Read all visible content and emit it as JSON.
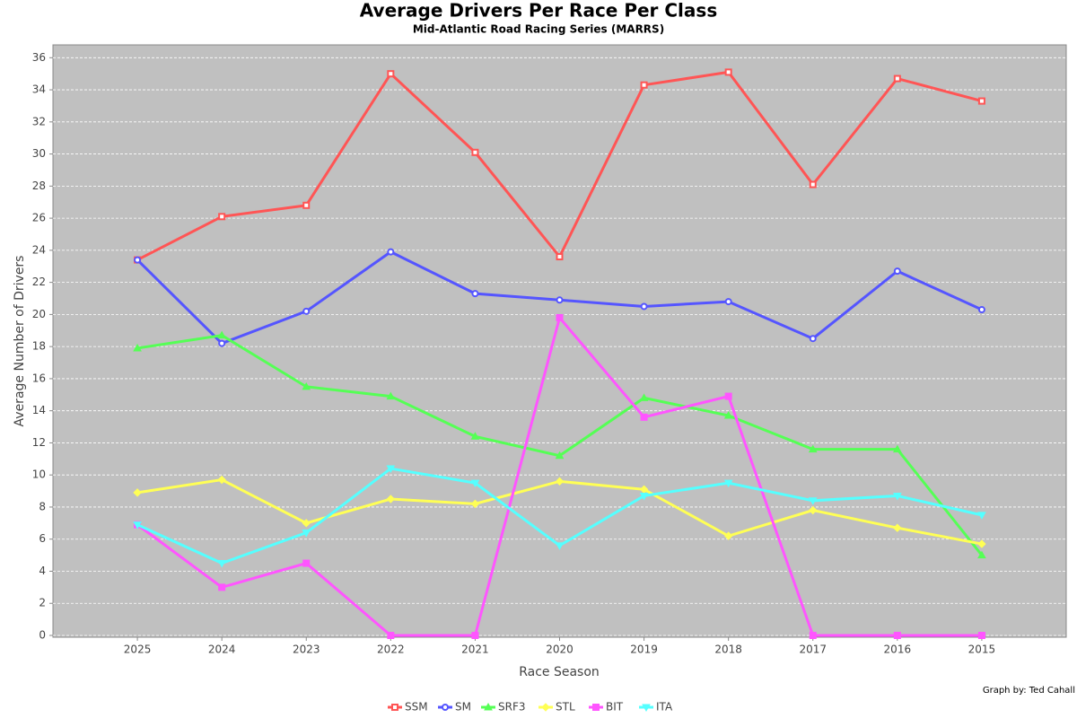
{
  "chart_data": {
    "type": "line",
    "title": "Average Drivers Per Race Per Class",
    "subtitle": "Mid-Atlantic Road Racing Series (MARRS)",
    "x_label": "Race Season",
    "y_label": "Average Number of Drivers",
    "annotation": "Graph by: Ted Cahall",
    "categories": [
      "2025",
      "2024",
      "2023",
      "2022",
      "2021",
      "2020",
      "2019",
      "2018",
      "2017",
      "2016",
      "2015"
    ],
    "ylim": [
      0,
      36.8
    ],
    "yticks": [
      0,
      2,
      4,
      6,
      8,
      10,
      12,
      14,
      16,
      18,
      20,
      22,
      24,
      26,
      28,
      30,
      32,
      34,
      36
    ],
    "grid": true,
    "legend": "bottom",
    "series": [
      {
        "name": "SSM",
        "color": "#ff5555",
        "marker": "square",
        "values": [
          23.4,
          26.1,
          26.8,
          35.0,
          30.1,
          23.6,
          34.3,
          35.1,
          28.1,
          34.7,
          33.3
        ]
      },
      {
        "name": "SM",
        "color": "#5555ff",
        "marker": "circle",
        "values": [
          23.4,
          18.2,
          20.2,
          23.9,
          21.3,
          20.9,
          20.5,
          20.8,
          18.5,
          22.7,
          20.3
        ]
      },
      {
        "name": "SRF3",
        "color": "#55ff55",
        "marker": "triangle-up",
        "values": [
          17.9,
          18.7,
          15.5,
          14.9,
          12.4,
          11.2,
          14.8,
          13.7,
          11.6,
          11.6,
          5.0
        ]
      },
      {
        "name": "STL",
        "color": "#ffff55",
        "marker": "diamond",
        "values": [
          8.9,
          9.7,
          7.0,
          8.5,
          8.2,
          9.6,
          9.1,
          6.2,
          7.8,
          6.7,
          5.7
        ]
      },
      {
        "name": "BIT",
        "color": "#ff55ff",
        "marker": "filled-square",
        "values": [
          6.9,
          3.0,
          4.5,
          0,
          0,
          19.8,
          13.6,
          14.9,
          0,
          0,
          0
        ]
      },
      {
        "name": "ITA",
        "color": "#55ffff",
        "marker": "triangle-down",
        "values": [
          6.9,
          4.5,
          6.4,
          10.4,
          9.5,
          5.6,
          8.7,
          9.5,
          8.4,
          8.7,
          7.5
        ]
      }
    ]
  }
}
